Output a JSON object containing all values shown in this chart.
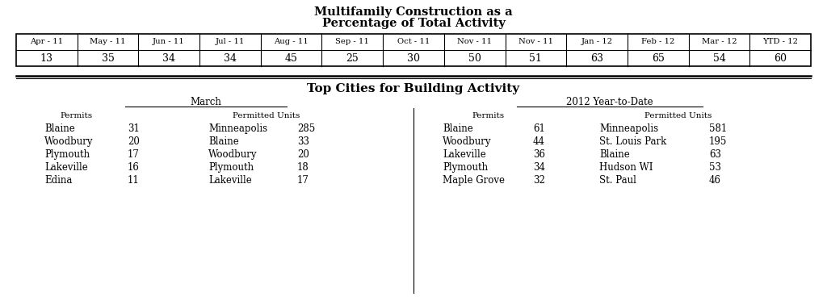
{
  "title1": "Multifamily Construction as a",
  "title2": "Percentage of Total Activity",
  "table_headers": [
    "Apr - 11",
    "May - 11",
    "Jun - 11",
    "Jul - 11",
    "Aug - 11",
    "Sep - 11",
    "Oct - 11",
    "Nov - 11",
    "Nov - 11",
    "Jan - 12",
    "Feb - 12",
    "Mar - 12",
    "YTD - 12"
  ],
  "table_values": [
    "13",
    "35",
    "34",
    "34",
    "45",
    "25",
    "30",
    "50",
    "51",
    "63",
    "65",
    "54",
    "60"
  ],
  "bottom_title": "Top Cities for Building Activity",
  "march_header": "March",
  "ytd_header": "2012 Year-to-Date",
  "permits_label": "Permits",
  "permitted_units_label": "Permitted Units",
  "march_permits": [
    [
      "Blaine",
      "31"
    ],
    [
      "Woodbury",
      "20"
    ],
    [
      "Plymouth",
      "17"
    ],
    [
      "Lakeville",
      "16"
    ],
    [
      "Edina",
      "11"
    ]
  ],
  "march_units": [
    [
      "Minneapolis",
      "285"
    ],
    [
      "Blaine",
      "33"
    ],
    [
      "Woodbury",
      "20"
    ],
    [
      "Plymouth",
      "18"
    ],
    [
      "Lakeville",
      "17"
    ]
  ],
  "ytd_permits": [
    [
      "Blaine",
      "61"
    ],
    [
      "Woodbury",
      "44"
    ],
    [
      "Lakeville",
      "36"
    ],
    [
      "Plymouth",
      "34"
    ],
    [
      "Maple Grove",
      "32"
    ]
  ],
  "ytd_units": [
    [
      "Minneapolis",
      "581"
    ],
    [
      "St. Louis Park",
      "195"
    ],
    [
      "Blaine",
      "63"
    ],
    [
      "Hudson WI",
      "53"
    ],
    [
      "St. Paul",
      "46"
    ]
  ],
  "bg_color": "#ffffff",
  "text_color": "#000000",
  "font_family": "DejaVu Serif"
}
